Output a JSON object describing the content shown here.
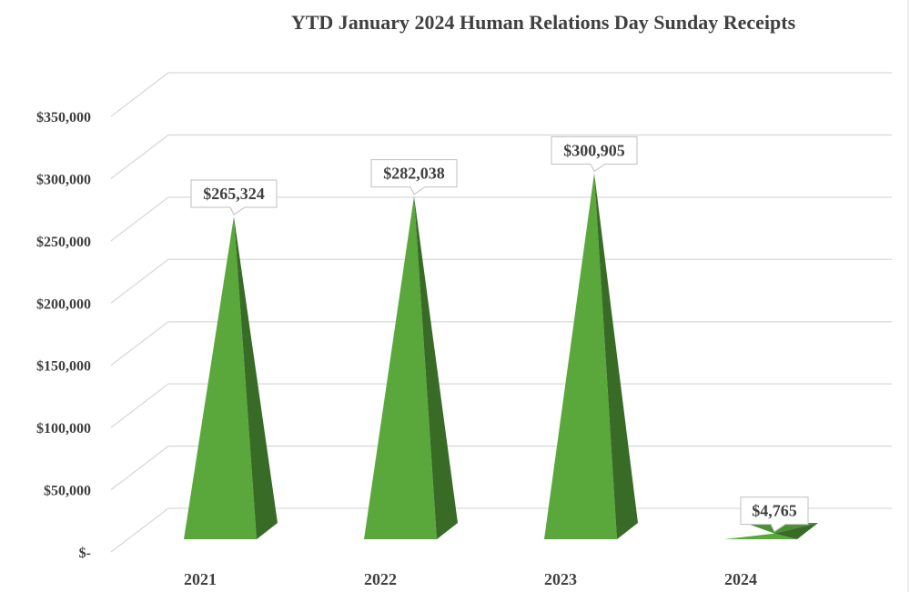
{
  "chart_data": {
    "type": "bar",
    "bar_shape": "3d-pyramid",
    "title": "YTD January 2024 Human Relations Day Sunday Receipts",
    "xlabel": "",
    "ylabel": "",
    "categories": [
      "2021",
      "2022",
      "2023",
      "2024"
    ],
    "values": [
      265324,
      282038,
      300905,
      4765
    ],
    "data_labels": [
      "$265,324",
      "$282,038",
      "$300,905",
      "$4,765"
    ],
    "ylim": [
      0,
      350000
    ],
    "y_ticks": [
      0,
      50000,
      100000,
      150000,
      200000,
      250000,
      300000,
      350000
    ],
    "y_tick_labels": [
      "$-",
      "$50,000",
      "$100,000",
      "$150,000",
      "$200,000",
      "$250,000",
      "$300,000",
      "$350,000"
    ],
    "grid": true,
    "legend": "none",
    "colors": {
      "front": "#5aa83c",
      "side": "#376b26",
      "grid": "#d9d9d9",
      "text": "#404040"
    }
  }
}
